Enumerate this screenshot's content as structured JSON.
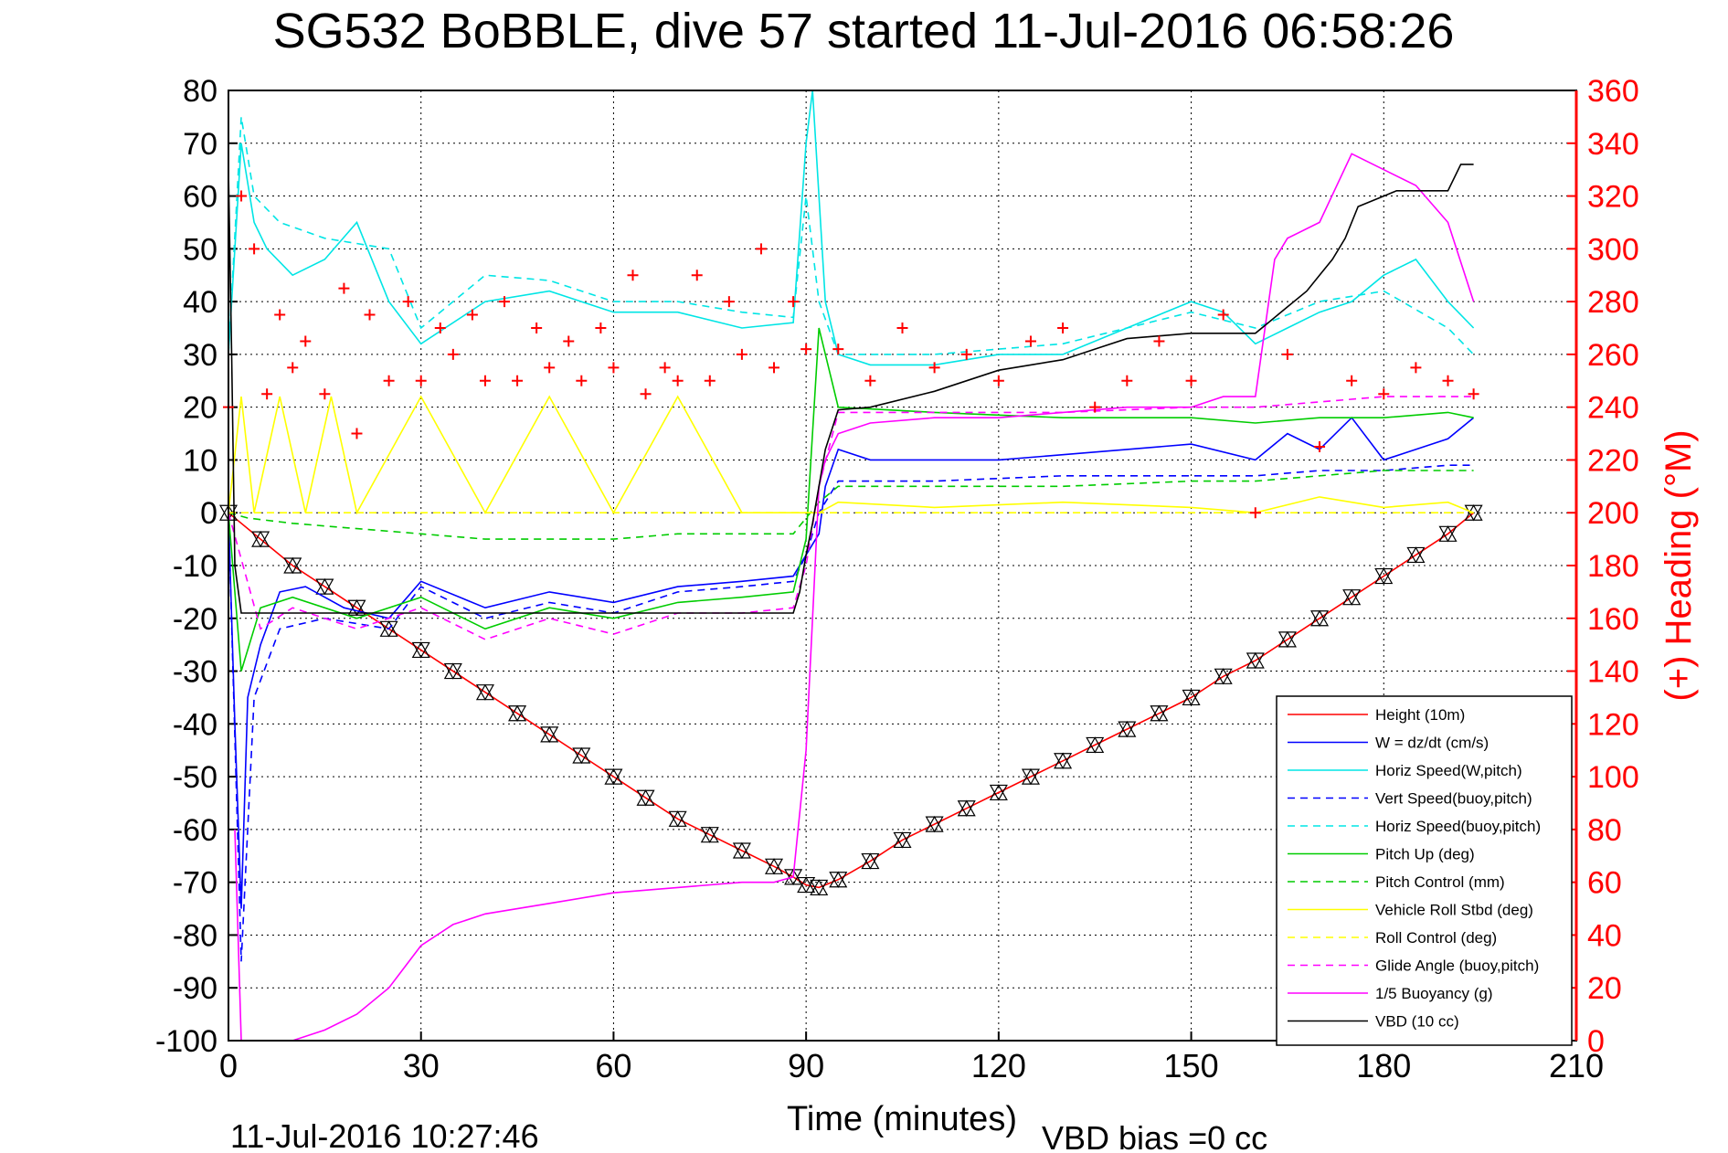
{
  "chart_data": {
    "type": "line",
    "title": "SG532 BoBBLE, dive 57 started 11-Jul-2016 06:58:26",
    "xlabel": "Time (minutes)",
    "ylabel": "",
    "y2label": "(+) Heading (°M)",
    "xlim": [
      0,
      210
    ],
    "ylim": [
      -100,
      80
    ],
    "y2lim": [
      0,
      360
    ],
    "xticks": [
      "0",
      "30",
      "60",
      "90",
      "120",
      "150",
      "180",
      "210"
    ],
    "yticks": [
      "80",
      "70",
      "60",
      "50",
      "40",
      "30",
      "20",
      "10",
      "0",
      "-10",
      "-20",
      "-30",
      "-40",
      "-50",
      "-60",
      "-70",
      "-80",
      "-90",
      "-100"
    ],
    "y2ticks": [
      "360",
      "340",
      "320",
      "300",
      "280",
      "260",
      "240",
      "220",
      "200",
      "180",
      "160",
      "140",
      "120",
      "100",
      "80",
      "60",
      "40",
      "20",
      "0"
    ],
    "grid": true,
    "legend_position": "bottom-right",
    "footer_left": "11-Jul-2016 10:27:46",
    "footer_right": "VBD bias =0 cc",
    "colors": {
      "red": "#ff0000",
      "blue": "#0000ff",
      "cyan": "#00e5e5",
      "green": "#00cc00",
      "yellow": "#ffff00",
      "magenta": "#ff00ff",
      "black": "#000000"
    },
    "series": [
      {
        "name": "Height (10m)",
        "color": "#ff0000",
        "style": "solid",
        "x": [
          0,
          5,
          10,
          15,
          20,
          25,
          30,
          35,
          40,
          45,
          50,
          55,
          60,
          65,
          70,
          75,
          80,
          85,
          88,
          90,
          92,
          95,
          100,
          105,
          110,
          115,
          120,
          125,
          130,
          135,
          140,
          145,
          150,
          155,
          160,
          165,
          170,
          175,
          180,
          185,
          190,
          194
        ],
        "y": [
          0,
          -5,
          -10,
          -14,
          -18,
          -22,
          -26,
          -30,
          -34,
          -38,
          -42,
          -46,
          -50,
          -54,
          -58,
          -61,
          -64,
          -67,
          -69,
          -70.5,
          -71,
          -69.5,
          -66,
          -62,
          -59,
          -56,
          -53,
          -50,
          -47,
          -44,
          -41,
          -38,
          -35,
          -31,
          -28,
          -24,
          -20,
          -16,
          -12,
          -8,
          -4,
          0
        ]
      },
      {
        "name": "W = dz/dt (cm/s)",
        "color": "#0000ff",
        "style": "solid",
        "x": [
          0,
          1,
          2,
          3,
          5,
          8,
          12,
          18,
          25,
          30,
          40,
          50,
          60,
          70,
          80,
          88,
          90,
          92,
          93,
          95,
          100,
          110,
          120,
          130,
          140,
          150,
          160,
          165,
          170,
          175,
          180,
          185,
          190,
          194
        ],
        "y": [
          0,
          -40,
          -75,
          -35,
          -25,
          -15,
          -14,
          -18,
          -20,
          -13,
          -18,
          -15,
          -17,
          -14,
          -13,
          -12,
          -8,
          -4,
          5,
          12,
          10,
          10,
          10,
          11,
          12,
          13,
          10,
          15,
          12,
          18,
          10,
          12,
          14,
          18
        ]
      },
      {
        "name": "Horiz Speed(W,pitch)",
        "color": "#00e5e5",
        "style": "solid",
        "x": [
          0,
          2,
          4,
          6,
          10,
          15,
          20,
          25,
          30,
          40,
          50,
          60,
          70,
          80,
          88,
          90,
          91,
          93,
          95,
          100,
          110,
          120,
          130,
          140,
          150,
          155,
          160,
          165,
          170,
          175,
          180,
          185,
          190,
          194
        ],
        "y": [
          30,
          70,
          55,
          50,
          45,
          48,
          55,
          40,
          32,
          40,
          42,
          38,
          38,
          35,
          36,
          70,
          80,
          40,
          30,
          28,
          28,
          30,
          30,
          35,
          40,
          38,
          32,
          35,
          38,
          40,
          45,
          48,
          40,
          35
        ]
      },
      {
        "name": "Vert Speed(buoy,pitch)",
        "color": "#0000ff",
        "style": "dashed",
        "x": [
          0,
          2,
          4,
          8,
          15,
          25,
          30,
          40,
          50,
          60,
          70,
          80,
          88,
          90,
          92,
          95,
          110,
          130,
          150,
          160,
          170,
          180,
          190,
          194
        ],
        "y": [
          0,
          -85,
          -35,
          -22,
          -20,
          -22,
          -14,
          -20,
          -17,
          -19,
          -15,
          -14,
          -13,
          -8,
          0,
          6,
          6,
          7,
          7,
          7,
          8,
          8,
          9,
          9
        ]
      },
      {
        "name": "Horiz Speed(buoy,pitch)",
        "color": "#00e5e5",
        "style": "dashed",
        "x": [
          0,
          2,
          4,
          8,
          15,
          25,
          30,
          40,
          50,
          60,
          70,
          80,
          88,
          90,
          92,
          95,
          110,
          130,
          150,
          160,
          170,
          180,
          190,
          194
        ],
        "y": [
          30,
          75,
          60,
          55,
          52,
          50,
          35,
          45,
          44,
          40,
          40,
          38,
          37,
          60,
          40,
          30,
          30,
          32,
          38,
          35,
          40,
          42,
          35,
          30
        ]
      },
      {
        "name": "Pitch Up (deg)",
        "color": "#00cc00",
        "style": "solid",
        "x": [
          0,
          2,
          5,
          10,
          20,
          30,
          40,
          50,
          60,
          70,
          80,
          88,
          90,
          92,
          95,
          110,
          130,
          150,
          160,
          170,
          180,
          190,
          194
        ],
        "y": [
          0,
          -30,
          -18,
          -16,
          -20,
          -16,
          -22,
          -18,
          -20,
          -17,
          -16,
          -15,
          -5,
          35,
          20,
          19,
          18,
          18,
          17,
          18,
          18,
          19,
          18
        ]
      },
      {
        "name": "Pitch Control (mm)",
        "color": "#00cc00",
        "style": "dashed",
        "x": [
          0,
          3,
          10,
          20,
          30,
          40,
          50,
          60,
          70,
          80,
          88,
          90,
          92,
          95,
          110,
          130,
          150,
          160,
          170,
          180,
          190,
          194
        ],
        "y": [
          0,
          -1,
          -2,
          -3,
          -4,
          -5,
          -5,
          -5,
          -4,
          -4,
          -4,
          -1,
          2,
          5,
          5,
          5,
          6,
          6,
          7,
          8,
          8,
          8
        ]
      },
      {
        "name": "Vehicle Roll Stbd (deg)",
        "color": "#ffff00",
        "style": "solid",
        "x": [
          0,
          2,
          4,
          8,
          12,
          16,
          20,
          30,
          40,
          50,
          60,
          70,
          80,
          88,
          90,
          92,
          95,
          110,
          130,
          150,
          160,
          170,
          180,
          190,
          194
        ],
        "y": [
          0,
          22,
          0,
          22,
          0,
          22,
          0,
          22,
          0,
          22,
          0,
          22,
          0,
          0,
          0,
          0,
          2,
          1,
          2,
          1,
          0,
          3,
          1,
          2,
          0
        ]
      },
      {
        "name": "Roll Control (deg)",
        "color": "#ffff00",
        "style": "dashed",
        "x": [
          0,
          30,
          60,
          90,
          95,
          120,
          150,
          180,
          194
        ],
        "y": [
          0,
          0,
          0,
          0,
          0,
          0,
          0,
          0,
          0
        ]
      },
      {
        "name": "Glide Angle (buoy,pitch)",
        "color": "#ff00ff",
        "style": "dashed",
        "x": [
          0,
          5,
          10,
          20,
          30,
          40,
          50,
          60,
          70,
          80,
          88,
          90,
          92,
          95,
          110,
          130,
          150,
          160,
          170,
          180,
          190,
          194
        ],
        "y": [
          0,
          -22,
          -18,
          -22,
          -18,
          -24,
          -20,
          -23,
          -19,
          -19,
          -18,
          -10,
          5,
          19,
          19,
          19,
          20,
          20,
          21,
          22,
          22,
          22
        ]
      },
      {
        "name": "1/5 Buoyancy (g)",
        "color": "#ff00ff",
        "style": "solid",
        "x": [
          1,
          2,
          10,
          15,
          20,
          25,
          30,
          35,
          40,
          50,
          60,
          70,
          80,
          85,
          88,
          90,
          91,
          92,
          93,
          95,
          100,
          110,
          120,
          130,
          140,
          150,
          155,
          160,
          163,
          165,
          170,
          175,
          180,
          185,
          190,
          194
        ],
        "y": [
          -60,
          -100,
          -100,
          -98,
          -95,
          -90,
          -82,
          -78,
          -76,
          -74,
          -72,
          -71,
          -70,
          -70,
          -69,
          -45,
          -20,
          5,
          10,
          15,
          17,
          18,
          18,
          19,
          20,
          20,
          22,
          22,
          48,
          52,
          55,
          68,
          65,
          62,
          55,
          40
        ]
      },
      {
        "name": "VBD (10 cc)",
        "color": "#000000",
        "style": "solid",
        "x": [
          0,
          0.5,
          1,
          2,
          3,
          5,
          30,
          60,
          88,
          89,
          90,
          91,
          92,
          93,
          95,
          100,
          110,
          120,
          125,
          130,
          135,
          140,
          150,
          155,
          160,
          162,
          165,
          168,
          170,
          172,
          174,
          176,
          180,
          182,
          190,
          192,
          194
        ],
        "y": [
          65,
          30,
          -10,
          -19,
          -19,
          -19,
          -19,
          -19,
          -19,
          -15,
          -8,
          -2,
          5,
          12,
          19.5,
          20,
          23,
          27,
          28,
          29,
          31,
          33,
          34,
          34,
          34,
          36,
          39,
          42,
          45,
          48,
          52,
          58,
          60,
          61,
          61,
          66,
          66
        ]
      },
      {
        "name": "Heading",
        "color": "#ff0000",
        "style": "markers",
        "axis": "y2",
        "x": [
          0,
          2,
          4,
          6,
          8,
          10,
          12,
          15,
          18,
          20,
          22,
          25,
          28,
          30,
          33,
          35,
          38,
          40,
          43,
          45,
          48,
          50,
          53,
          55,
          58,
          60,
          63,
          65,
          68,
          70,
          73,
          75,
          78,
          80,
          83,
          85,
          88,
          90,
          95,
          100,
          105,
          110,
          115,
          120,
          125,
          130,
          135,
          140,
          145,
          150,
          155,
          160,
          165,
          170,
          175,
          180,
          185,
          190,
          194
        ],
        "y": [
          240,
          320,
          300,
          245,
          275,
          255,
          265,
          245,
          285,
          230,
          275,
          250,
          280,
          250,
          270,
          260,
          275,
          250,
          280,
          250,
          270,
          255,
          265,
          250,
          270,
          255,
          290,
          245,
          255,
          250,
          290,
          250,
          280,
          260,
          300,
          255,
          280,
          262,
          262,
          250,
          270,
          255,
          260,
          250,
          265,
          270,
          240,
          250,
          265,
          250,
          275,
          200,
          260,
          225,
          250,
          245,
          255,
          250,
          245
        ]
      }
    ]
  }
}
